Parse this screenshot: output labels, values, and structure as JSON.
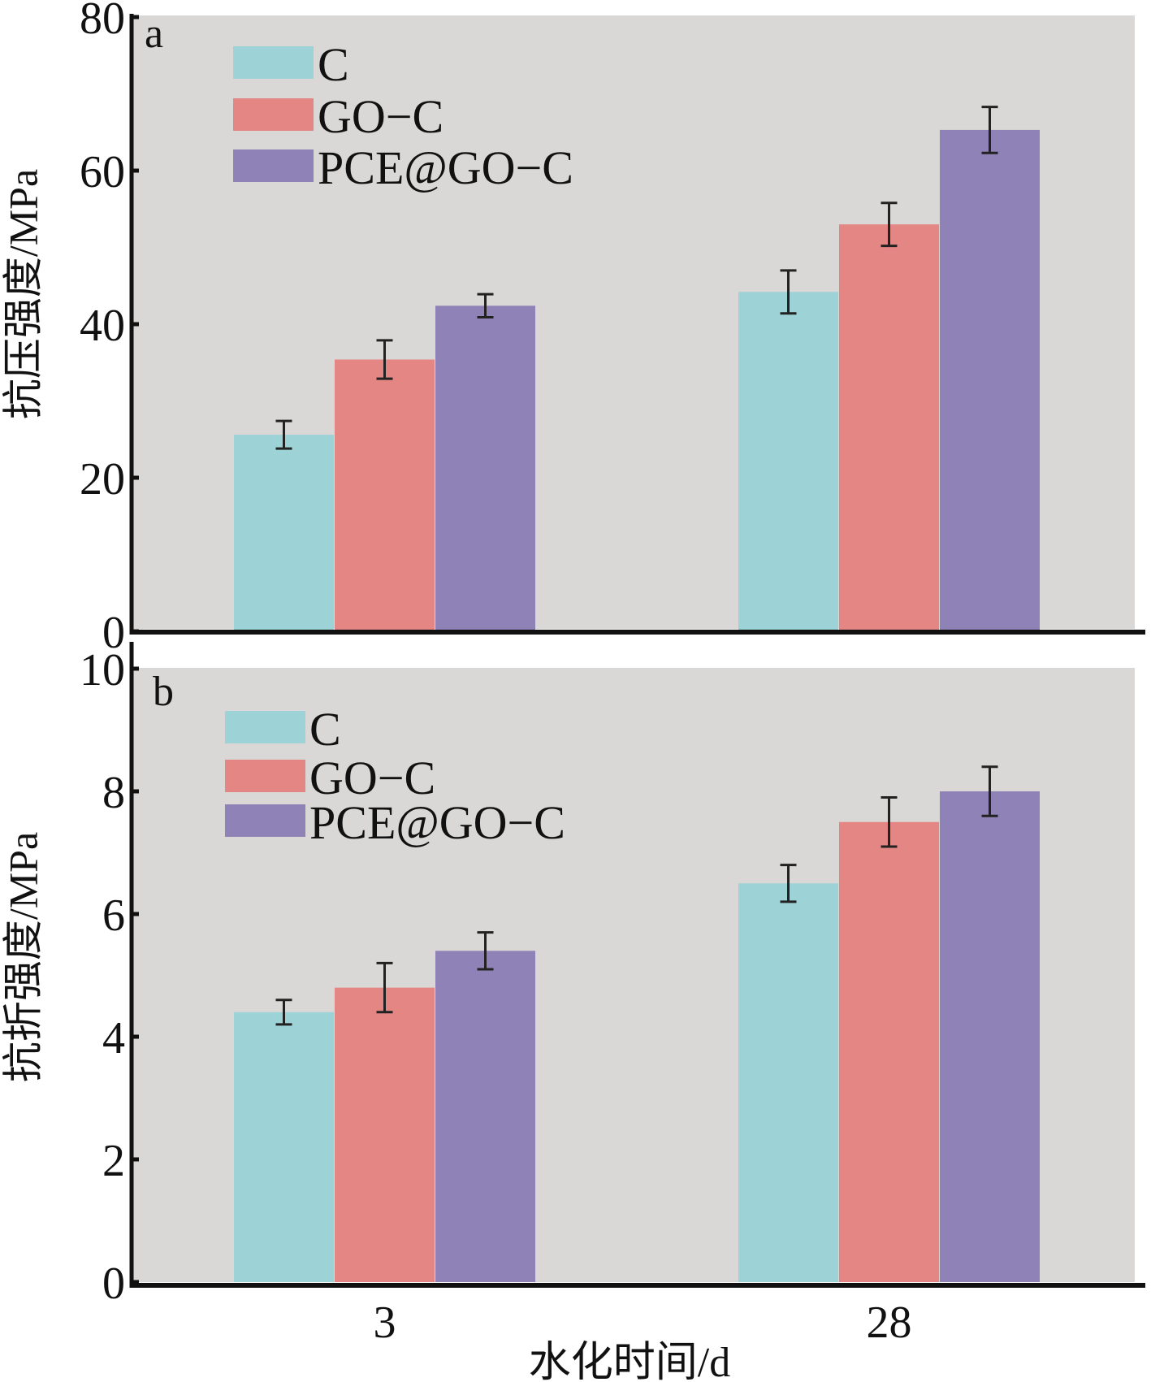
{
  "chart_data": [
    {
      "type": "bar",
      "panel_label": "a",
      "title": "",
      "xlabel": "",
      "ylabel": "抗压强度/MPa",
      "categories": [
        "3",
        "28"
      ],
      "ylim": [
        0,
        80
      ],
      "yticks": [
        0,
        20,
        40,
        60,
        80
      ],
      "grid": false,
      "legend_position": "top-left",
      "series": [
        {
          "name": "C",
          "color": "#9dd2d6",
          "values": [
            25.6,
            44.2
          ],
          "errors": [
            1.8,
            2.8
          ]
        },
        {
          "name": "GO−C",
          "color": "#e48784",
          "values": [
            35.4,
            53.0
          ],
          "errors": [
            2.5,
            2.8
          ]
        },
        {
          "name": "PCE@GO−C",
          "color": "#8f82b6",
          "values": [
            42.4,
            65.3
          ],
          "errors": [
            1.5,
            3.0
          ]
        }
      ]
    },
    {
      "type": "bar",
      "panel_label": "b",
      "title": "",
      "xlabel": "水化时间/d",
      "ylabel": "抗折强度/MPa",
      "categories": [
        "3",
        "28"
      ],
      "ylim": [
        0,
        10
      ],
      "yticks": [
        0,
        2,
        4,
        6,
        8,
        10
      ],
      "grid": false,
      "legend_position": "top-left",
      "series": [
        {
          "name": "C",
          "color": "#9dd2d6",
          "values": [
            4.4,
            6.5
          ],
          "errors": [
            0.2,
            0.3
          ]
        },
        {
          "name": "GO−C",
          "color": "#e48784",
          "values": [
            4.8,
            7.5
          ],
          "errors": [
            0.4,
            0.4
          ]
        },
        {
          "name": "PCE@GO−C",
          "color": "#8f82b6",
          "values": [
            5.4,
            8.0
          ],
          "errors": [
            0.3,
            0.4
          ]
        }
      ]
    }
  ],
  "colors": {
    "plot_background": "#d9d8d6",
    "axis": "#111111"
  }
}
